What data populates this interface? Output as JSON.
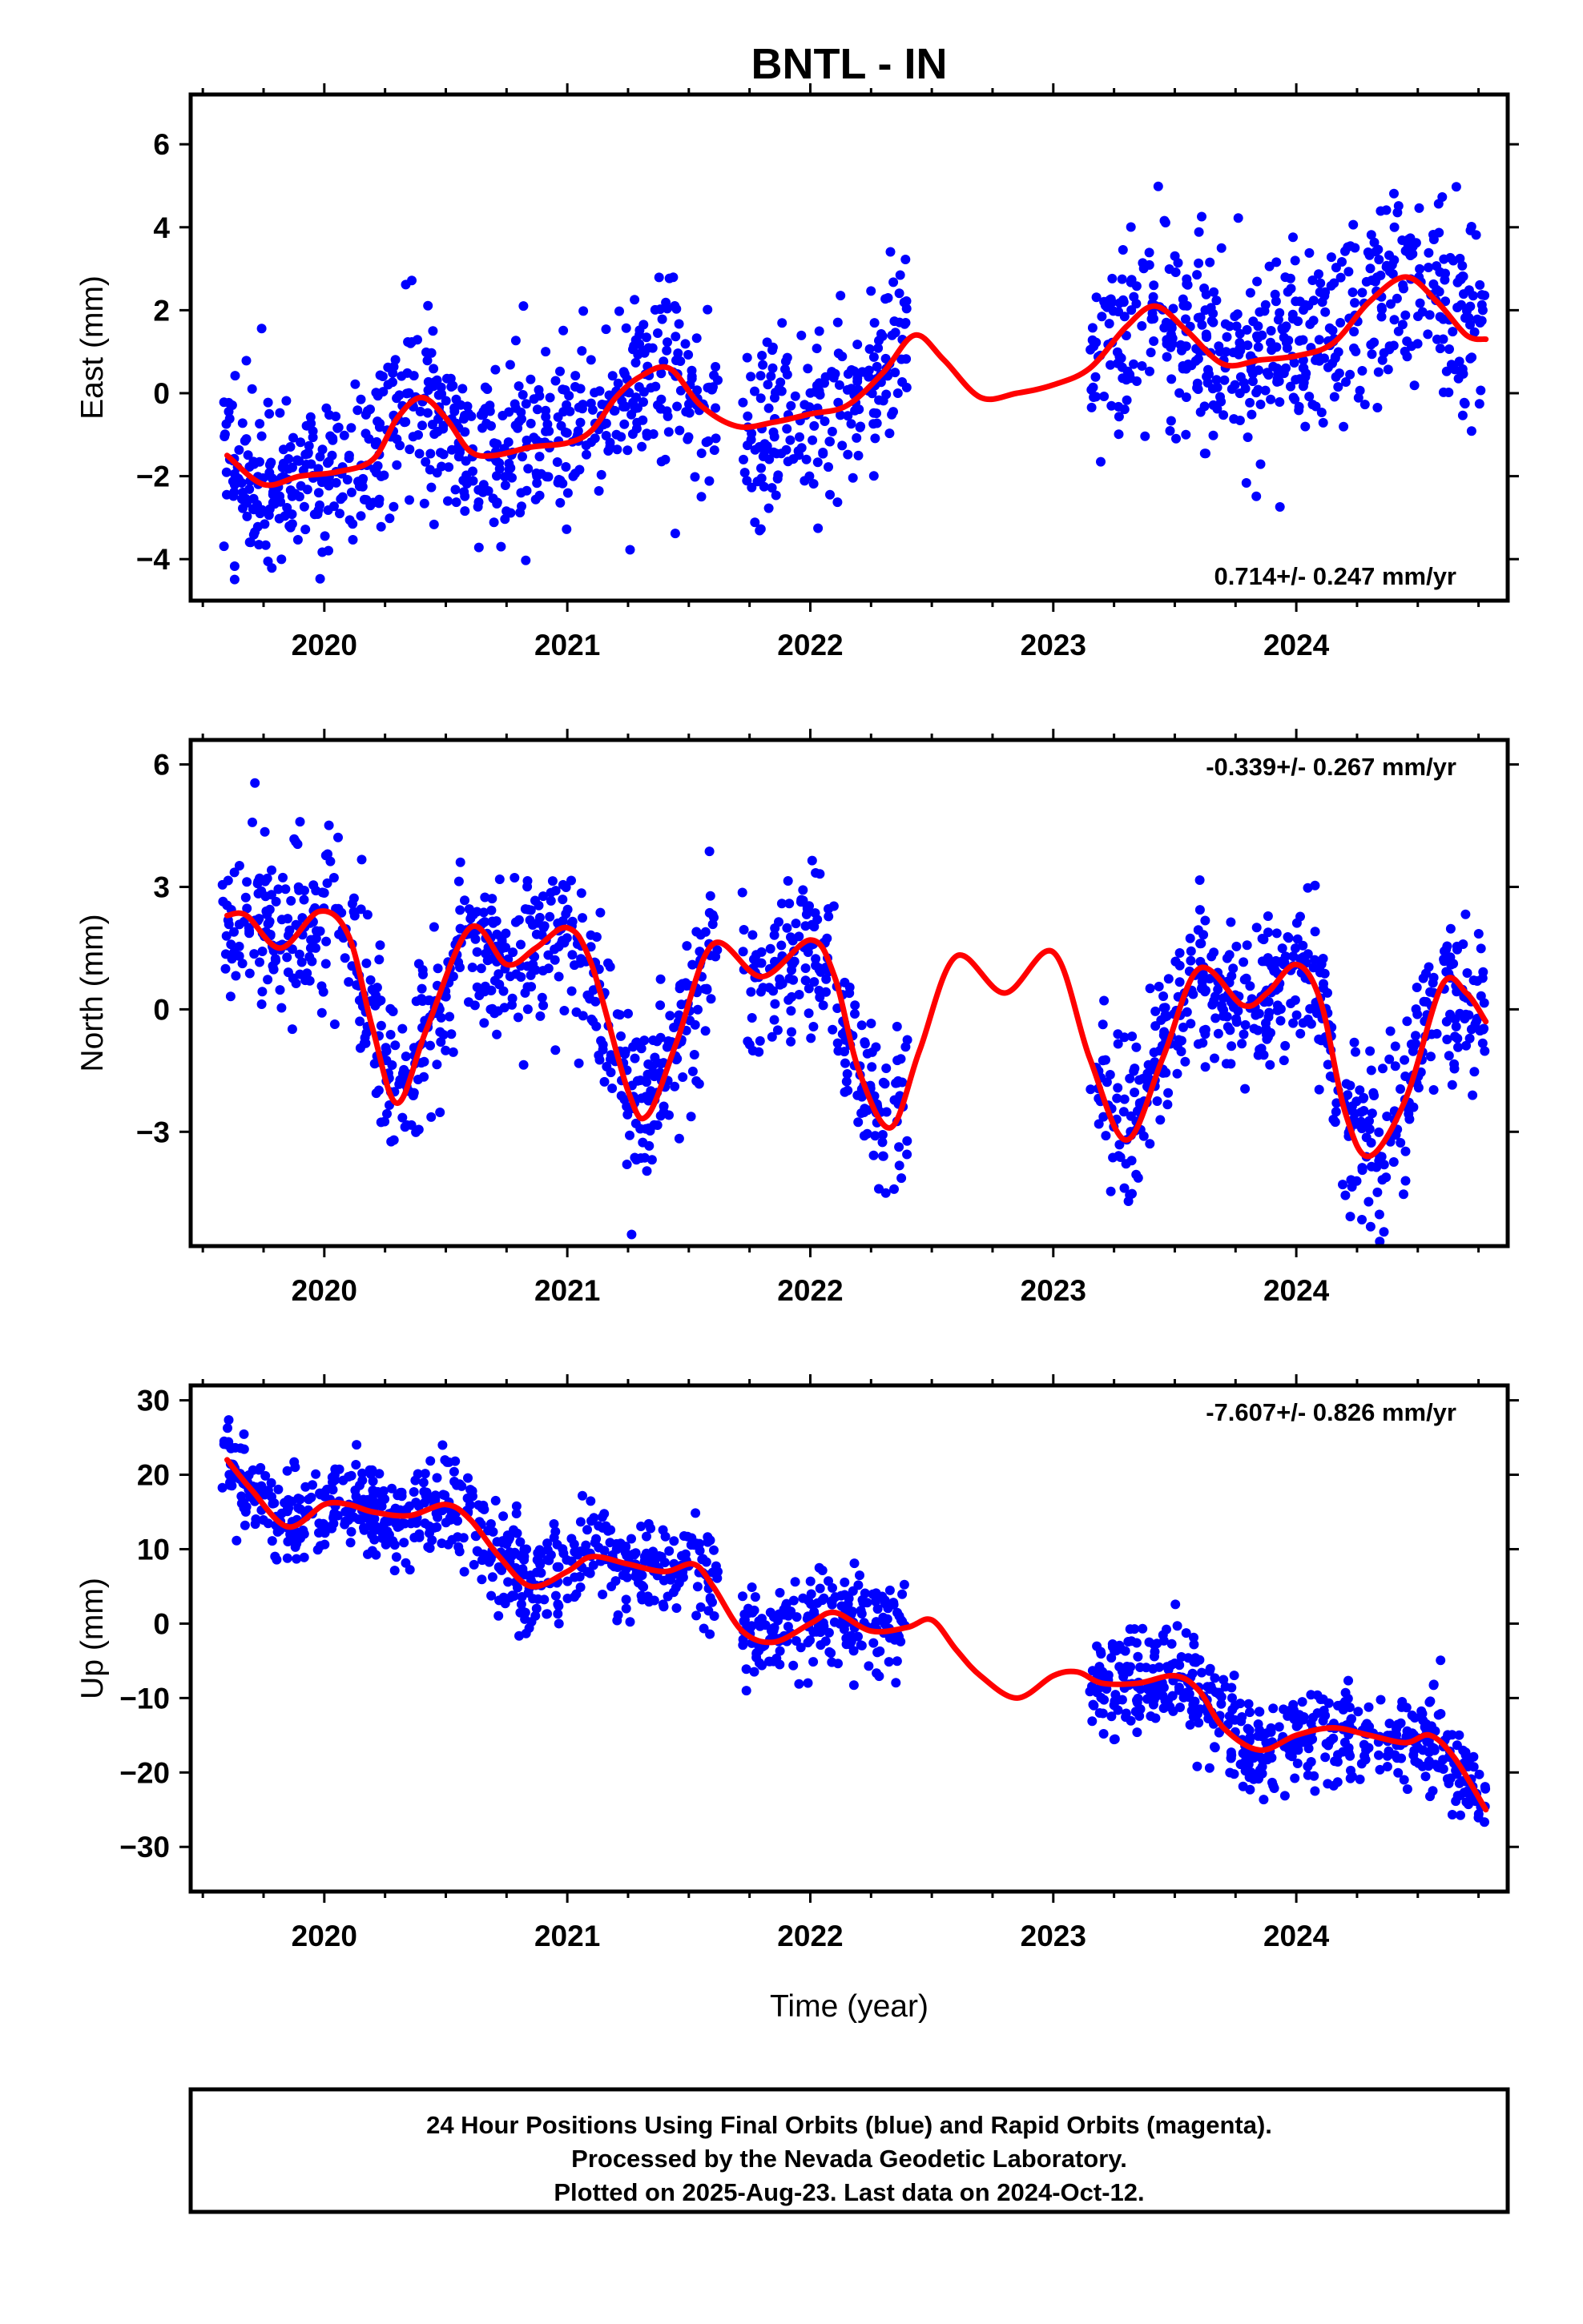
{
  "title": "BNTL - IN",
  "x_axis_label": "Time (year)",
  "footer": {
    "lines": [
      "24 Hour Positions Using Final Orbits (blue) and Rapid Orbits (magenta).",
      "Processed by the Nevada Geodetic Laboratory.",
      "Plotted on 2025-Aug-23. Last data on 2024-Oct-12."
    ]
  },
  "colors": {
    "points": "#0000ff",
    "fit": "#ff0000",
    "frame": "#000000"
  },
  "chart_data": [
    {
      "type": "scatter",
      "name": "east",
      "ylabel": "East (mm)",
      "rate_label": "0.714+/- 0.247 mm/yr",
      "rate_position": "bottom-right",
      "xlim": [
        2019.45,
        2024.87
      ],
      "ylim": [
        -5.0,
        7.2
      ],
      "xticks": [
        2020,
        2021,
        2022,
        2023,
        2024
      ],
      "xtick_labels": [
        "2020",
        "2021",
        "2022",
        "2023",
        "2024"
      ],
      "yticks": [
        -4,
        -2,
        0,
        2,
        4,
        6
      ],
      "ytick_labels": [
        "−4",
        "−2",
        "0",
        "2",
        "4",
        "6"
      ],
      "fit": {
        "x": [
          2019.6,
          2019.75,
          2019.9,
          2020.05,
          2020.2,
          2020.3,
          2020.4,
          2020.5,
          2020.6,
          2020.7,
          2020.85,
          2021.0,
          2021.1,
          2021.2,
          2021.3,
          2021.42,
          2021.55,
          2021.7,
          2021.85,
          2022.0,
          2022.15,
          2022.3,
          2022.43,
          2022.55,
          2022.7,
          2022.85,
          2023.0,
          2023.15,
          2023.3,
          2023.42,
          2023.55,
          2023.7,
          2023.85,
          2024.0,
          2024.15,
          2024.3,
          2024.45,
          2024.58,
          2024.7,
          2024.78
        ],
        "y": [
          -1.5,
          -2.2,
          -2.0,
          -1.9,
          -1.6,
          -0.6,
          -0.1,
          -0.6,
          -1.4,
          -1.5,
          -1.3,
          -1.2,
          -0.9,
          -0.1,
          0.4,
          0.6,
          -0.3,
          -0.8,
          -0.7,
          -0.5,
          -0.3,
          0.5,
          1.4,
          0.8,
          -0.1,
          0.0,
          0.2,
          0.6,
          1.6,
          2.1,
          1.5,
          0.7,
          0.8,
          0.9,
          1.2,
          2.2,
          2.8,
          2.2,
          1.4,
          1.3
        ]
      },
      "point_segments": [
        {
          "start": 2019.58,
          "end": 2021.62,
          "n": 640,
          "sd": 1.1
        },
        {
          "start": 2021.72,
          "end": 2022.4,
          "n": 200,
          "sd": 1.1
        },
        {
          "start": 2023.15,
          "end": 2024.78,
          "n": 520,
          "sd": 1.2
        }
      ]
    },
    {
      "type": "scatter",
      "name": "north",
      "ylabel": "North (mm)",
      "rate_label": "-0.339+/- 0.267 mm/yr",
      "rate_position": "top-right",
      "xlim": [
        2019.45,
        2024.87
      ],
      "ylim": [
        -5.8,
        6.6
      ],
      "xticks": [
        2020,
        2021,
        2022,
        2023,
        2024
      ],
      "xtick_labels": [
        "2020",
        "2021",
        "2022",
        "2023",
        "2024"
      ],
      "yticks": [
        -3,
        0,
        3,
        6
      ],
      "ytick_labels": [
        "−3",
        "0",
        "3",
        "6"
      ],
      "fit": {
        "x": [
          2019.6,
          2019.68,
          2019.82,
          2019.98,
          2020.1,
          2020.2,
          2020.3,
          2020.42,
          2020.6,
          2020.75,
          2020.87,
          2021.0,
          2021.1,
          2021.25,
          2021.33,
          2021.45,
          2021.6,
          2021.8,
          2022.0,
          2022.1,
          2022.2,
          2022.33,
          2022.45,
          2022.6,
          2022.8,
          2023.0,
          2023.15,
          2023.3,
          2023.45,
          2023.6,
          2023.78,
          2023.88,
          2024.0,
          2024.1,
          2024.2,
          2024.3,
          2024.45,
          2024.6,
          2024.7,
          2024.78
        ],
        "y": [
          2.3,
          2.3,
          1.5,
          2.4,
          1.8,
          -0.5,
          -2.3,
          -0.5,
          2.0,
          1.1,
          1.5,
          2.0,
          1.1,
          -2.0,
          -2.6,
          -0.8,
          1.6,
          0.8,
          1.7,
          0.8,
          -1.5,
          -2.9,
          -1.0,
          1.3,
          0.4,
          1.4,
          -1.2,
          -3.2,
          -1.2,
          1.0,
          0.1,
          0.4,
          1.1,
          0.2,
          -2.5,
          -3.6,
          -2.2,
          0.6,
          0.4,
          -0.3
        ]
      },
      "point_segments": [
        {
          "start": 2019.58,
          "end": 2021.62,
          "n": 640,
          "sd": 1.0
        },
        {
          "start": 2021.72,
          "end": 2022.4,
          "n": 200,
          "sd": 1.0
        },
        {
          "start": 2023.15,
          "end": 2024.78,
          "n": 520,
          "sd": 1.0
        }
      ]
    },
    {
      "type": "scatter",
      "name": "up",
      "ylabel": "Up (mm)",
      "rate_label": "-7.607+/- 0.826 mm/yr",
      "rate_position": "top-right",
      "xlim": [
        2019.45,
        2024.87
      ],
      "ylim": [
        -36,
        32
      ],
      "xticks": [
        2020,
        2021,
        2022,
        2023,
        2024
      ],
      "xtick_labels": [
        "2020",
        "2021",
        "2022",
        "2023",
        "2024"
      ],
      "yticks": [
        -30,
        -20,
        -10,
        0,
        10,
        20,
        30
      ],
      "ytick_labels": [
        "−30",
        "−20",
        "−10",
        "0",
        "10",
        "20",
        "30"
      ],
      "fit": {
        "x": [
          2019.6,
          2019.7,
          2019.85,
          2020.0,
          2020.1,
          2020.2,
          2020.35,
          2020.5,
          2020.6,
          2020.72,
          2020.85,
          2021.0,
          2021.1,
          2021.25,
          2021.4,
          2021.52,
          2021.6,
          2021.72,
          2021.85,
          2022.0,
          2022.1,
          2022.25,
          2022.4,
          2022.5,
          2022.6,
          2022.7,
          2022.85,
          2023.0,
          2023.1,
          2023.2,
          2023.35,
          2023.5,
          2023.6,
          2023.7,
          2023.85,
          2024.0,
          2024.15,
          2024.3,
          2024.45,
          2024.55,
          2024.65,
          2024.78
        ],
        "y": [
          22,
          18,
          13,
          16,
          16,
          15,
          14.5,
          16,
          14,
          9,
          5,
          7,
          9,
          8,
          7,
          8,
          5,
          -1,
          -2.5,
          0,
          1.5,
          -1,
          -0.5,
          0.5,
          -3.5,
          -7,
          -10,
          -7,
          -6.5,
          -8,
          -8,
          -7,
          -9,
          -14,
          -17,
          -15,
          -14,
          -15,
          -16,
          -15,
          -18,
          -25
        ]
      },
      "point_segments": [
        {
          "start": 2019.58,
          "end": 2021.62,
          "n": 640,
          "sd": 3.2
        },
        {
          "start": 2021.72,
          "end": 2022.4,
          "n": 200,
          "sd": 3.2
        },
        {
          "start": 2023.15,
          "end": 2024.78,
          "n": 520,
          "sd": 3.4
        }
      ]
    }
  ]
}
